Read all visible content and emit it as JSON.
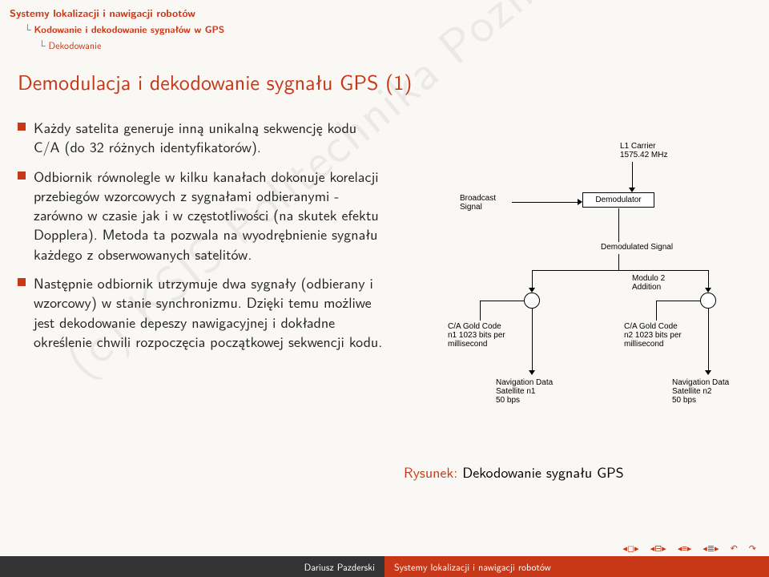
{
  "header": {
    "line1": "Systemy lokalizacji i nawigacji robotów",
    "line2": "Kodowanie i dekodowanie sygnałów w GPS",
    "line3": "Dekodowanie"
  },
  "title": "Demodulacja i dekodowanie sygnału GPS (1)",
  "bullets": [
    "Każdy satelita generuje inną unikalną sekwencję kodu C/A (do 32 różnych identyfikatorów).",
    "Odbiornik równolegle w kilku kanałach dokonuje korelacji przebiegów wzorcowych z sygnałami odbieranymi - zarówno w czasie jak i w częstotliwości (na skutek efektu Dopplera). Metoda ta pozwala na wyodrębnienie sygnału każdego z obserwowanych satelitów.",
    "Następnie odbiornik utrzymuje dwa sygnały (odbierany i wzorcowy) w stanie synchronizmu. Dzięki temu możliwe jest dekodowanie depeszy nawigacyjnej i dokładne określenie chwili rozpoczęcia początkowej sekwencji kodu."
  ],
  "diagram": {
    "l1_carrier": "L1 Carrier\n1575.42 MHz",
    "broadcast_signal": "Broadcast\nSignal",
    "demodulator": "Demodulator",
    "demodulated_signal": "Demodulated Signal",
    "modulo2": "Modulo 2\nAddition",
    "ca_code_n1": "C/A Gold Code\nn1 1023 bits per\nmillisecond",
    "ca_code_n2": "C/A Gold Code\nn2 1023 bits per\nmillisecond",
    "nav_n1": "Navigation Data\nSatellite n1\n50 bps",
    "nav_n2": "Navigation Data\nSatellite n2\n50 bps"
  },
  "caption_prefix": "Rysunek:",
  "caption_text": " Dekodowanie sygnału GPS",
  "watermark": "(c) KSIS Politechnika Poznanska",
  "footer": {
    "author": "Dariusz Pazderski",
    "title": "Systemy lokalizacji i nawigacji robotów"
  },
  "colors": {
    "accent": "#c73818",
    "footer_dark": "#333333",
    "background": "#faf8f5"
  }
}
